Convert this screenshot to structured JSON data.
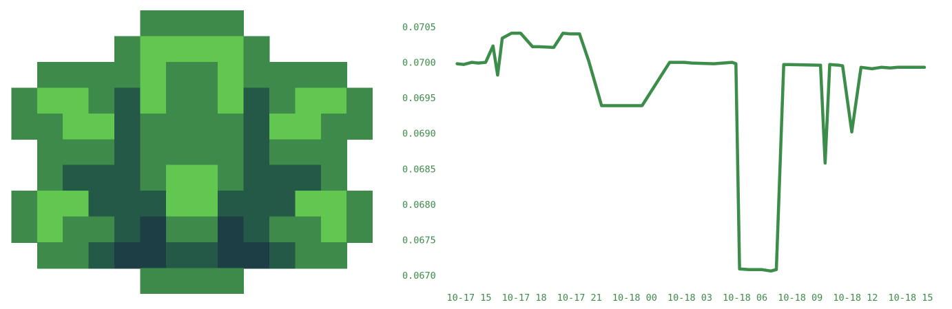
{
  "colors": {
    "dark": "#1c3e44",
    "mid": "#235946",
    "base": "#3e8a4a",
    "light": "#62c751",
    "line": "#3c8c4a",
    "axis_text": "#3c8c4a"
  },
  "identicon": {
    "grid": [
      "..........................",
      "..........................",
      "..........................",
      "..........................",
      "..........................",
      "..........................",
      "..........................",
      "..........................",
      "..........................",
      "..........................",
      "..........................",
      "..........................",
      "..........................",
      ".........................."
    ]
  },
  "chart_data": {
    "type": "line",
    "title": "",
    "xlabel": "",
    "ylabel": "",
    "ylim": [
      0.0668,
      0.0707
    ],
    "xlim": [
      -0.7,
      24.8
    ],
    "y_ticks": [
      "0.0705",
      "0.0700",
      "0.0695",
      "0.0690",
      "0.0685",
      "0.0680",
      "0.0675",
      "0.0670"
    ],
    "y_tick_values": [
      0.0705,
      0.07,
      0.0695,
      0.069,
      0.0685,
      0.068,
      0.0675,
      0.067
    ],
    "x_ticks": [
      "10-17 15",
      "10-17 18",
      "10-17 21",
      "10-18 00",
      "10-18 03",
      "10-18 06",
      "10-18 09",
      "10-18 12",
      "10-18 15"
    ],
    "x_tick_values": [
      0,
      3,
      6,
      9,
      12,
      15,
      18,
      21,
      24
    ],
    "grid": false,
    "series": [
      {
        "x": [
          -0.65,
          -0.3,
          0.15,
          0.5,
          0.9,
          1.3,
          1.55,
          1.8,
          2.3,
          2.8,
          3.45,
          3.8,
          4.6,
          5.1,
          5.5,
          6.0,
          6.5,
          7.2,
          8.2,
          9.4,
          10.9,
          11.7,
          12.1,
          13.3,
          14.3,
          14.5,
          14.7,
          15.2,
          15.9,
          16.4,
          16.7,
          17.1,
          19.1,
          19.35,
          19.6,
          20.1,
          20.3,
          20.8,
          21.3,
          21.9,
          22.4,
          22.9,
          23.3,
          24.75
        ],
        "y": [
          0.06998,
          0.06997,
          0.07,
          0.06999,
          0.07,
          0.07023,
          0.06982,
          0.07034,
          0.07041,
          0.07041,
          0.07022,
          0.07022,
          0.07021,
          0.07041,
          0.0704,
          0.0704,
          0.07002,
          0.06939,
          0.06939,
          0.06939,
          0.07,
          0.07,
          0.06999,
          0.06998,
          0.07,
          0.06998,
          0.06709,
          0.06708,
          0.06708,
          0.06706,
          0.06708,
          0.06997,
          0.06996,
          0.06858,
          0.06997,
          0.06996,
          0.06995,
          0.06902,
          0.06993,
          0.06991,
          0.06993,
          0.06992,
          0.06993,
          0.06993
        ]
      }
    ]
  }
}
